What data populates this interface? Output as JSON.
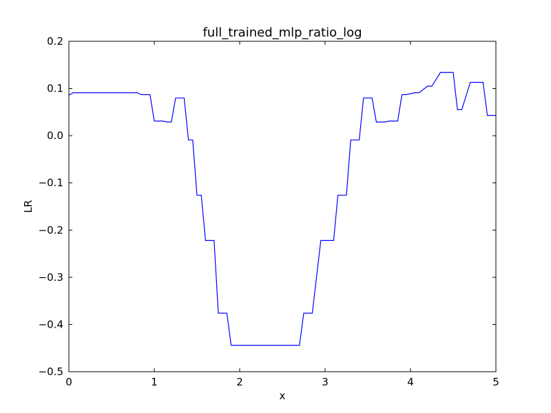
{
  "chart_data": {
    "type": "line",
    "title": "full_trained_mlp_ratio_log",
    "xlabel": "x",
    "ylabel": "LR",
    "xlim": [
      0,
      5
    ],
    "ylim": [
      -0.5,
      0.2
    ],
    "x_ticks": [
      0,
      1,
      2,
      3,
      4,
      5
    ],
    "x_tick_labels": [
      "0",
      "1",
      "2",
      "3",
      "4",
      "5"
    ],
    "y_ticks": [
      -0.5,
      -0.4,
      -0.3,
      -0.2,
      -0.1,
      0.0,
      0.1,
      0.2
    ],
    "y_tick_labels": [
      "−0.5",
      "−0.4",
      "−0.3",
      "−0.2",
      "−0.1",
      "0.0",
      "0.1",
      "0.2"
    ],
    "grid": false,
    "series": [
      {
        "color": "#0000ff",
        "x": [
          0.0,
          0.05,
          0.8,
          0.85,
          0.95,
          1.0,
          1.1,
          1.15,
          1.2,
          1.25,
          1.35,
          1.4,
          1.45,
          1.5,
          1.55,
          1.6,
          1.65,
          1.7,
          1.75,
          1.8,
          1.85,
          1.9,
          2.0,
          2.7,
          2.75,
          2.8,
          2.85,
          2.95,
          3.0,
          3.1,
          3.15,
          3.25,
          3.3,
          3.4,
          3.45,
          3.55,
          3.6,
          3.7,
          3.75,
          3.8,
          3.85,
          3.9,
          3.95,
          4.05,
          4.1,
          4.2,
          4.25,
          4.35,
          4.4,
          4.5,
          4.55,
          4.6,
          4.7,
          4.75,
          4.85,
          4.9,
          4.95,
          5.0
        ],
        "y": [
          0.086,
          0.091,
          0.091,
          0.087,
          0.087,
          0.031,
          0.031,
          0.029,
          0.029,
          0.08,
          0.08,
          -0.009,
          -0.009,
          -0.126,
          -0.126,
          -0.222,
          -0.222,
          -0.222,
          -0.376,
          -0.376,
          -0.376,
          -0.444,
          -0.444,
          -0.444,
          -0.376,
          -0.376,
          -0.376,
          -0.222,
          -0.222,
          -0.222,
          -0.126,
          -0.126,
          -0.009,
          -0.009,
          0.08,
          0.08,
          0.029,
          0.029,
          0.031,
          0.031,
          0.031,
          0.087,
          0.087,
          0.091,
          0.091,
          0.105,
          0.105,
          0.134,
          0.134,
          0.134,
          0.055,
          0.055,
          0.113,
          0.113,
          0.113,
          0.043,
          0.043,
          0.043
        ]
      }
    ]
  }
}
